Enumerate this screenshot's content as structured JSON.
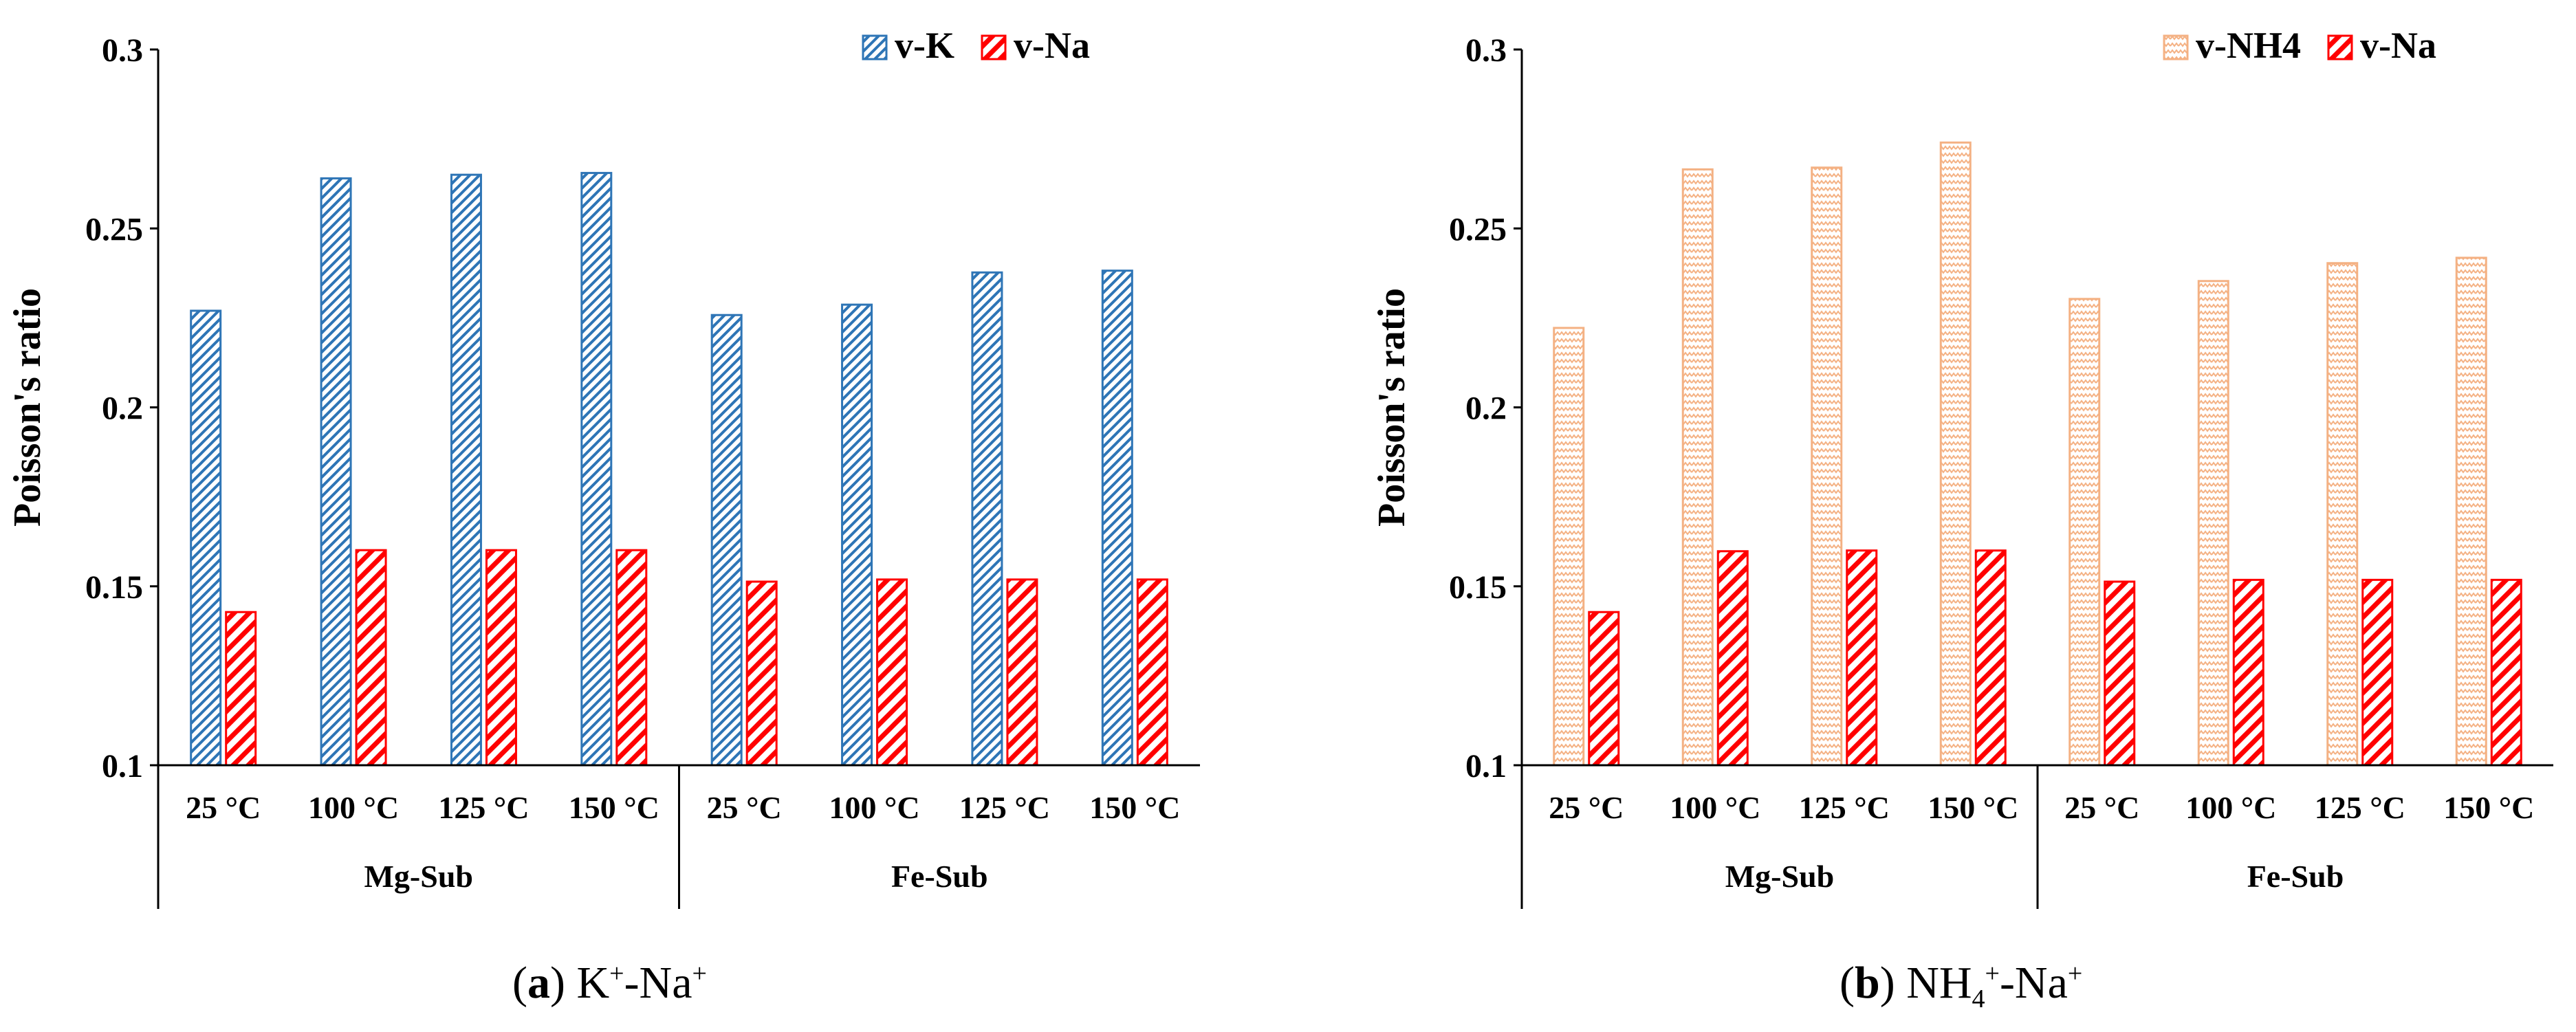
{
  "chart_data": [
    {
      "type": "bar",
      "panel": "a",
      "ylabel": "Poisson's ratio",
      "xlabel": "",
      "ylim": [
        0.1,
        0.3
      ],
      "yticks": [
        "0.1",
        "0.15",
        "0.2",
        "0.25",
        "0.3"
      ],
      "categories": [
        "25 °C",
        "100 °C",
        "125 °C",
        "150 °C",
        "25 °C",
        "100 °C",
        "125 °C",
        "150 °C"
      ],
      "groups": [
        {
          "label": "Mg-Sub",
          "count": 4
        },
        {
          "label": "Fe-Sub",
          "count": 4
        }
      ],
      "legend_position": "top-right",
      "series": [
        {
          "name": "v-K",
          "color": "#2E75B6",
          "pattern": "diag-dense",
          "values": [
            0.227,
            0.264,
            0.265,
            0.2655,
            0.2258,
            0.2287,
            0.2377,
            0.2382
          ]
        },
        {
          "name": "v-Na",
          "color": "#FF0000",
          "pattern": "diag-bold",
          "values": [
            0.1428,
            0.1601,
            0.1601,
            0.1601,
            0.1513,
            0.1519,
            0.1519,
            0.1519
          ]
        }
      ]
    },
    {
      "type": "bar",
      "panel": "b",
      "ylabel": "Poisson's ratio",
      "xlabel": "",
      "ylim": [
        0.1,
        0.3
      ],
      "yticks": [
        "0.1",
        "0.15",
        "0.2",
        "0.25",
        "0.3"
      ],
      "categories": [
        "25 °C",
        "100 °C",
        "125 °C",
        "150 °C",
        "25 °C",
        "100 °C",
        "125 °C",
        "150 °C"
      ],
      "groups": [
        {
          "label": "Mg-Sub",
          "count": 4
        },
        {
          "label": "Fe-Sub",
          "count": 4
        }
      ],
      "legend_position": "top-right",
      "series": [
        {
          "name": "v-NH4",
          "color": "#F4B183",
          "pattern": "zigzag",
          "values": [
            0.2222,
            0.2665,
            0.267,
            0.274,
            0.2303,
            0.2353,
            0.2403,
            0.2418
          ]
        },
        {
          "name": "v-Na",
          "color": "#FF0000",
          "pattern": "diag-bold",
          "values": [
            0.1428,
            0.1598,
            0.16,
            0.16,
            0.1513,
            0.1518,
            0.1518,
            0.1518
          ]
        }
      ]
    }
  ],
  "captions": {
    "a": {
      "letter": "a",
      "text1": " K",
      "sup1": "+",
      "text2": "-Na",
      "sup2": "+"
    },
    "b": {
      "letter": "b",
      "text1": " NH",
      "sub1": "4",
      "sup1": "+",
      "text2": "-Na",
      "sup2": "+"
    }
  }
}
